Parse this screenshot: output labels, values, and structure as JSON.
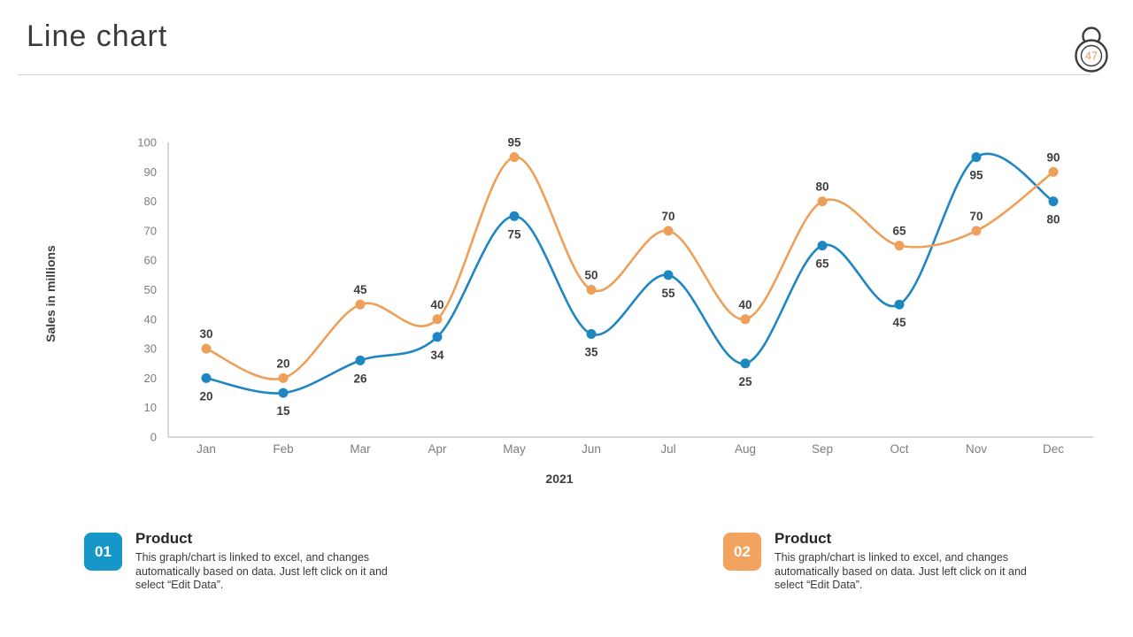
{
  "header": {
    "title": "Line chart",
    "lock_badge": "47"
  },
  "chart_data": {
    "type": "line",
    "xlabel": "2021",
    "ylabel": "Sales in millions",
    "categories": [
      "Jan",
      "Feb",
      "Mar",
      "Apr",
      "May",
      "Jun",
      "Jul",
      "Aug",
      "Sep",
      "Oct",
      "Nov",
      "Dec"
    ],
    "series": [
      {
        "name": "Product 01",
        "color": "#1E87C2",
        "values": [
          20,
          15,
          26,
          34,
          75,
          35,
          55,
          25,
          65,
          45,
          95,
          80
        ],
        "label_position": "below"
      },
      {
        "name": "Product 02",
        "color": "#EDA05A",
        "values": [
          30,
          20,
          45,
          40,
          95,
          50,
          70,
          40,
          80,
          65,
          70,
          90
        ],
        "label_position": "above"
      }
    ],
    "ylim": [
      0,
      100
    ],
    "ytick_step": 10,
    "grid": false,
    "markers": true,
    "data_labels": true,
    "legend_position": "none",
    "axis_color": "#c8c8c8"
  },
  "callouts": [
    {
      "number": "01",
      "color": "#1796C9",
      "title": "Product",
      "description": "This graph/chart is linked to excel, and changes automatically based on data. Just left click on it and select “Edit Data”."
    },
    {
      "number": "02",
      "color": "#F2A35F",
      "title": "Product",
      "description": "This graph/chart is linked to excel, and changes automatically based on data. Just left click on it and select “Edit Data”."
    }
  ]
}
